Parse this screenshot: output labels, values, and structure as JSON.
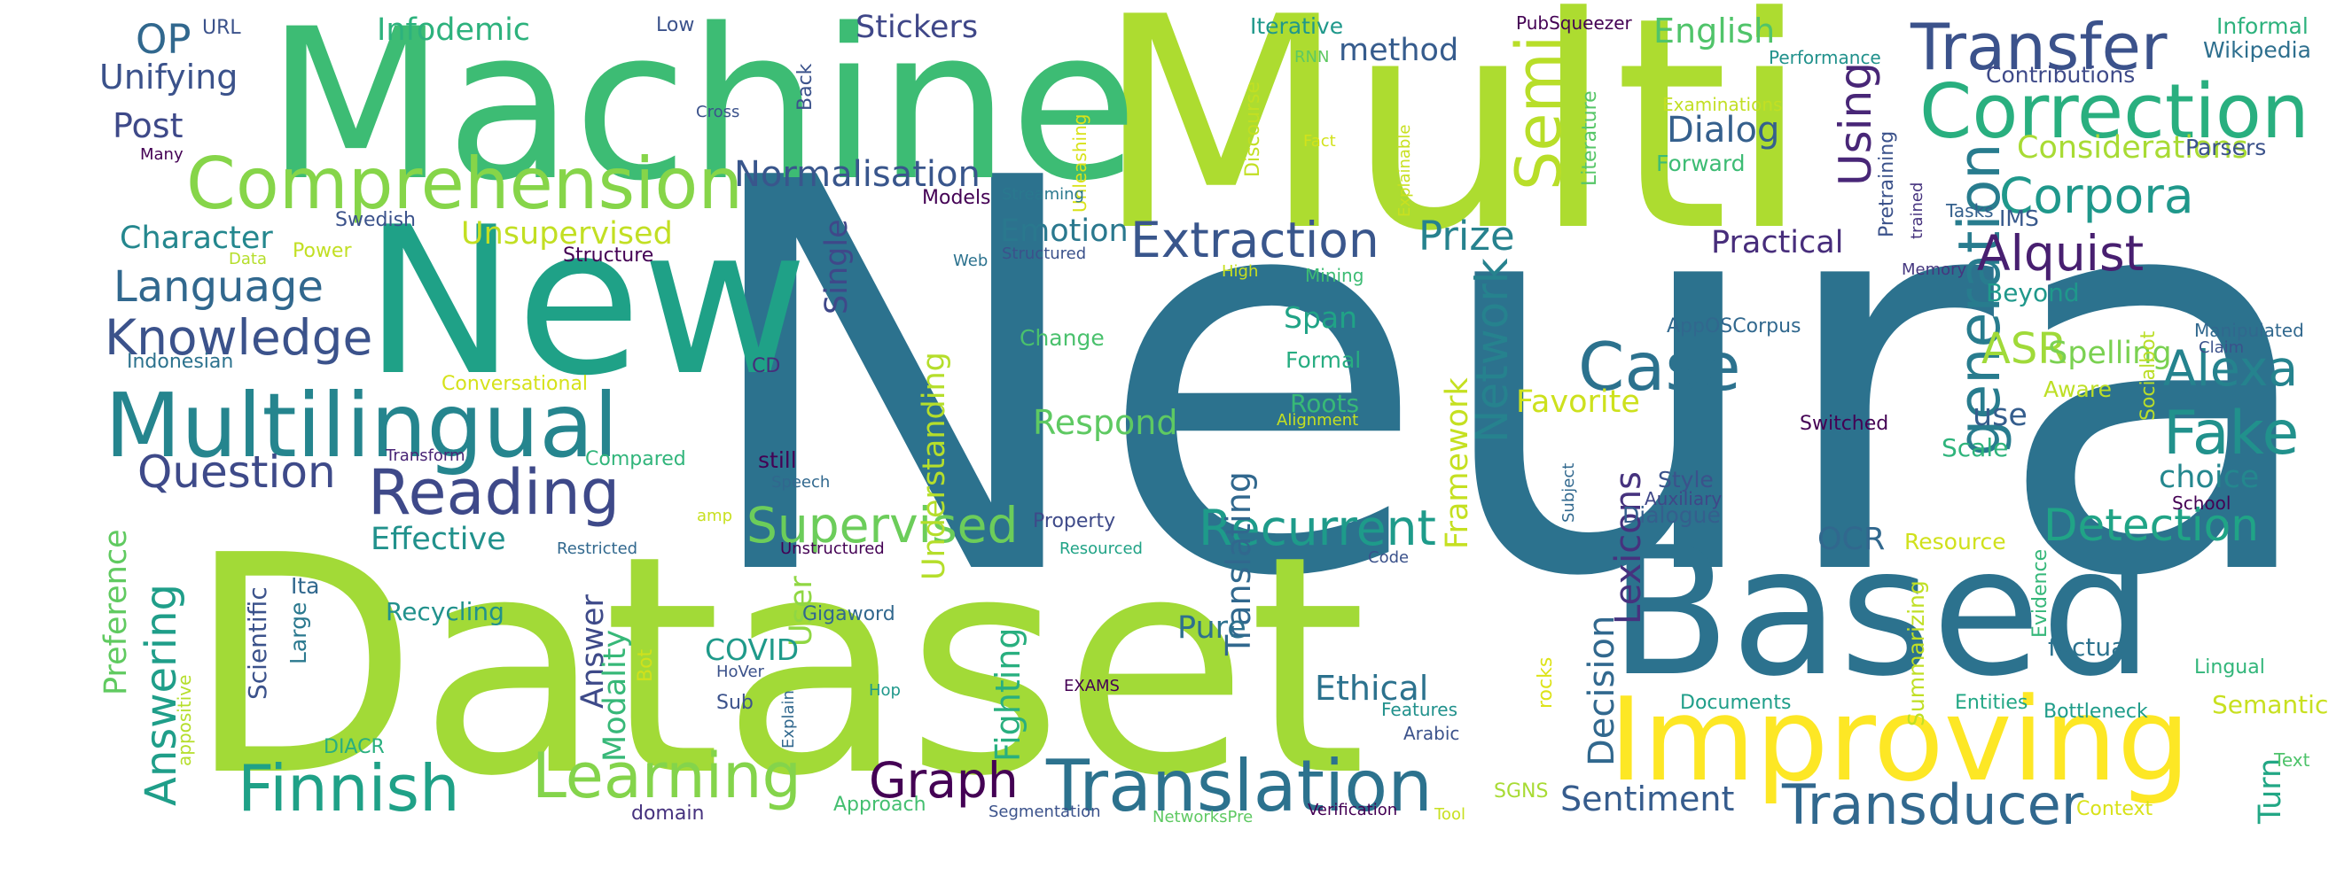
{
  "words": [
    {
      "text": "Neural",
      "color": "#2c728e"
    },
    {
      "text": "Multi",
      "color": "#addc30"
    },
    {
      "text": "Dataset",
      "color": "#a2da37"
    },
    {
      "text": "Machine",
      "color": "#3dbc74"
    },
    {
      "text": "New",
      "color": "#1fa187"
    },
    {
      "text": "Based",
      "color": "#2c728e"
    },
    {
      "text": "Improving",
      "color": "#fde725"
    },
    {
      "text": "Multilingual",
      "color": "#25858e"
    },
    {
      "text": "Comprehension",
      "color": "#86d549"
    },
    {
      "text": "Correction",
      "color": "#29af7f"
    },
    {
      "text": "Transfer",
      "color": "#3b528b"
    },
    {
      "text": "Translation",
      "color": "#2c728e"
    },
    {
      "text": "Reading",
      "color": "#3e4989"
    },
    {
      "text": "Learning",
      "color": "#84d44b"
    },
    {
      "text": "Finnish",
      "color": "#1fa187"
    },
    {
      "text": "Case",
      "color": "#2c728e"
    },
    {
      "text": "generation",
      "color": "#287c8e"
    },
    {
      "text": "Semi",
      "color": "#b8de29"
    },
    {
      "text": "Fake",
      "color": "#21918c"
    },
    {
      "text": "Transducer",
      "color": "#31688e"
    },
    {
      "text": "Extraction",
      "color": "#39568c"
    },
    {
      "text": "Knowledge",
      "color": "#3b528b"
    },
    {
      "text": "Supervised",
      "color": "#6ccd5a"
    },
    {
      "text": "Graph",
      "color": "#440154"
    },
    {
      "text": "Recurrent",
      "color": "#1e9b8a"
    },
    {
      "text": "Alquist",
      "color": "#481f70"
    },
    {
      "text": "Alexa",
      "color": "#25838e"
    },
    {
      "text": "Corpora",
      "color": "#1f988b"
    },
    {
      "text": "Detection",
      "color": "#20a486"
    },
    {
      "text": "Question",
      "color": "#3e4a89"
    },
    {
      "text": "Language",
      "color": "#31688e"
    },
    {
      "text": "Answering",
      "color": "#1f9e89"
    },
    {
      "text": "Network",
      "color": "#26828e"
    },
    {
      "text": "Using",
      "color": "#482677"
    },
    {
      "text": "ASR",
      "color": "#a0da39"
    },
    {
      "text": "Normalisation",
      "color": "#39568c"
    },
    {
      "text": "Translating",
      "color": "#31688e"
    },
    {
      "text": "Considerations",
      "color": "#a8db34"
    },
    {
      "text": "Character",
      "color": "#24878e"
    },
    {
      "text": "Prize",
      "color": "#26828e"
    },
    {
      "text": "Unsupervised",
      "color": "#c2df23"
    },
    {
      "text": "OP",
      "color": "#31688e"
    },
    {
      "text": "Stickers",
      "color": "#3f4788"
    },
    {
      "text": "Infodemic",
      "color": "#2db27d"
    },
    {
      "text": "English",
      "color": "#50c46a"
    },
    {
      "text": "Dialog",
      "color": "#35608d"
    },
    {
      "text": "Unifying",
      "color": "#3b528b"
    },
    {
      "text": "Post",
      "color": "#3e4989"
    },
    {
      "text": "method",
      "color": "#365c8d"
    },
    {
      "text": "Practical",
      "color": "#472d7b"
    },
    {
      "text": "Emotion",
      "color": "#2a788e"
    },
    {
      "text": "Understanding",
      "color": "#b5de2b"
    },
    {
      "text": "Single",
      "color": "#3f4889"
    },
    {
      "text": "Effective",
      "color": "#21918c"
    },
    {
      "text": "Respond",
      "color": "#5ec962"
    },
    {
      "text": "Favorite",
      "color": "#cde11d"
    },
    {
      "text": "Framework",
      "color": "#c5e021"
    },
    {
      "text": "Lexicons",
      "color": "#46327e"
    },
    {
      "text": "Decision",
      "color": "#31688e"
    },
    {
      "text": "Spelling",
      "color": "#7ad151"
    },
    {
      "text": "Turn",
      "color": "#22a785"
    },
    {
      "text": "Sentiment",
      "color": "#365c8d"
    },
    {
      "text": "Ethical",
      "color": "#2c728e"
    },
    {
      "text": "Fighting",
      "color": "#29af7f"
    },
    {
      "text": "Answer",
      "color": "#3e4a89"
    },
    {
      "text": "Modality",
      "color": "#37b878"
    },
    {
      "text": "User",
      "color": "#90d743"
    },
    {
      "text": "Pure",
      "color": "#2d708e"
    },
    {
      "text": "COVID",
      "color": "#1f9a8a"
    },
    {
      "text": "Preference",
      "color": "#60ca60"
    },
    {
      "text": "Scientific",
      "color": "#3b528b"
    },
    {
      "text": "Recycling",
      "color": "#21918c"
    },
    {
      "text": "Style",
      "color": "#3b528b"
    },
    {
      "text": "Dialogue",
      "color": "#355f8d"
    },
    {
      "text": "OCR",
      "color": "#31688e"
    },
    {
      "text": "Span",
      "color": "#20a386"
    },
    {
      "text": "Formal",
      "color": "#27ad81"
    },
    {
      "text": "Roots",
      "color": "#38b977"
    },
    {
      "text": "Change",
      "color": "#4ac16d"
    },
    {
      "text": "choice",
      "color": "#24878e"
    },
    {
      "text": "use",
      "color": "#355e8d"
    },
    {
      "text": "Scale",
      "color": "#2fb47c"
    },
    {
      "text": "Aware",
      "color": "#bddf26"
    },
    {
      "text": "Semantic",
      "color": "#c8e020"
    },
    {
      "text": "Context",
      "color": "#d8e219"
    },
    {
      "text": "Text",
      "color": "#4ec36b"
    },
    {
      "text": "Lingual",
      "color": "#32b67a"
    },
    {
      "text": "Bottleneck",
      "color": "#1e9c89"
    },
    {
      "text": "Entities",
      "color": "#22a785"
    },
    {
      "text": "Documents",
      "color": "#1f9e89"
    },
    {
      "text": "Resource",
      "color": "#d0e11c"
    },
    {
      "text": "Summarizing",
      "color": "#c0df25"
    },
    {
      "text": "factual",
      "color": "#2c728e"
    },
    {
      "text": "Evidence",
      "color": "#35b779"
    },
    {
      "text": "rocks",
      "color": "#dde318"
    },
    {
      "text": "Beyond",
      "color": "#1f988b"
    },
    {
      "text": "IMS",
      "color": "#38598c"
    },
    {
      "text": "Socialbot",
      "color": "#bade28"
    },
    {
      "text": "Manipulated",
      "color": "#31688e"
    },
    {
      "text": "Claim",
      "color": "#3b528b"
    },
    {
      "text": "School",
      "color": "#440154"
    },
    {
      "text": "Switched",
      "color": "#440154"
    },
    {
      "text": "Auxiliary",
      "color": "#3f4788"
    },
    {
      "text": "Subject",
      "color": "#31688e"
    },
    {
      "text": "Pretraining",
      "color": "#3b528b"
    },
    {
      "text": "trained",
      "color": "#46337e"
    },
    {
      "text": "Tasks",
      "color": "#34608d"
    },
    {
      "text": "Memory",
      "color": "#45377f"
    },
    {
      "text": "Wikipedia",
      "color": "#2e6f8e"
    },
    {
      "text": "Informal",
      "color": "#2db27d"
    },
    {
      "text": "Parsers",
      "color": "#3b528b"
    },
    {
      "text": "Contributions",
      "color": "#3e4a89"
    },
    {
      "text": "Performance",
      "color": "#21918c"
    },
    {
      "text": "PubSqueezer",
      "color": "#440154"
    },
    {
      "text": "Examinations",
      "color": "#c2df23"
    },
    {
      "text": "Forward",
      "color": "#3dbc74"
    },
    {
      "text": "Literature",
      "color": "#56c667"
    },
    {
      "text": "Iterative",
      "color": "#1f988b"
    },
    {
      "text": "RNN",
      "color": "#5ec962"
    },
    {
      "text": "Discourse",
      "color": "#c2df23"
    },
    {
      "text": "Fact",
      "color": "#d2e21b"
    },
    {
      "text": "Explainable",
      "color": "#c8e020"
    },
    {
      "text": "Unleashing",
      "color": "#d8e219"
    },
    {
      "text": "Models",
      "color": "#440154"
    },
    {
      "text": "Streaming",
      "color": "#2a788e"
    },
    {
      "text": "Structured",
      "color": "#3b528b"
    },
    {
      "text": "Web",
      "color": "#2c728e"
    },
    {
      "text": "High",
      "color": "#c8e020"
    },
    {
      "text": "Mining",
      "color": "#3dbc74"
    },
    {
      "text": "AppOSCorpus",
      "color": "#31688e"
    },
    {
      "text": "Alignment",
      "color": "#c5e021"
    },
    {
      "text": "Conversational",
      "color": "#d5e21a"
    },
    {
      "text": "Swedish",
      "color": "#3b528b"
    },
    {
      "text": "Structure",
      "color": "#440154"
    },
    {
      "text": "Power",
      "color": "#c2df23"
    },
    {
      "text": "Data",
      "color": "#b5de2b"
    },
    {
      "text": "Indonesian",
      "color": "#2c728e"
    },
    {
      "text": "CD",
      "color": "#472d7b"
    },
    {
      "text": "Transform",
      "color": "#482475"
    },
    {
      "text": "Compared",
      "color": "#31b57b"
    },
    {
      "text": "still",
      "color": "#440154"
    },
    {
      "text": "Speech",
      "color": "#31688e"
    },
    {
      "text": "amp",
      "color": "#c8e020"
    },
    {
      "text": "Restricted",
      "color": "#31688e"
    },
    {
      "text": "Unstructured",
      "color": "#440154"
    },
    {
      "text": "Property",
      "color": "#3e4a89"
    },
    {
      "text": "Resourced",
      "color": "#20a386"
    },
    {
      "text": "Code",
      "color": "#3b528b"
    },
    {
      "text": "Ita",
      "color": "#31688e"
    },
    {
      "text": "Large",
      "color": "#2a788e"
    },
    {
      "text": "Gigaword",
      "color": "#31688e"
    },
    {
      "text": "Bot",
      "color": "#d0e11c"
    },
    {
      "text": "appositive",
      "color": "#b5de2b"
    },
    {
      "text": "HoVer",
      "color": "#3b528b"
    },
    {
      "text": "Sub",
      "color": "#3b528b"
    },
    {
      "text": "Explain",
      "color": "#31688e"
    },
    {
      "text": "Hop",
      "color": "#1f988b"
    },
    {
      "text": "EXAMS",
      "color": "#440154"
    },
    {
      "text": "Features",
      "color": "#21918c"
    },
    {
      "text": "Arabic",
      "color": "#3b528b"
    },
    {
      "text": "DIACR",
      "color": "#29af7f"
    },
    {
      "text": "domain",
      "color": "#46327e"
    },
    {
      "text": "Approach",
      "color": "#44bf70"
    },
    {
      "text": "Segmentation",
      "color": "#3b528b"
    },
    {
      "text": "NetworksPre",
      "color": "#5ec962"
    },
    {
      "text": "Verification",
      "color": "#440154"
    },
    {
      "text": "Tool",
      "color": "#c8e020"
    },
    {
      "text": "SGNS",
      "color": "#a8db34"
    },
    {
      "text": "URL",
      "color": "#3b528b"
    },
    {
      "text": "Low",
      "color": "#3b528b"
    },
    {
      "text": "Back",
      "color": "#3b528b"
    },
    {
      "text": "Cross",
      "color": "#3b528b"
    },
    {
      "text": "Many",
      "color": "#440154"
    }
  ]
}
